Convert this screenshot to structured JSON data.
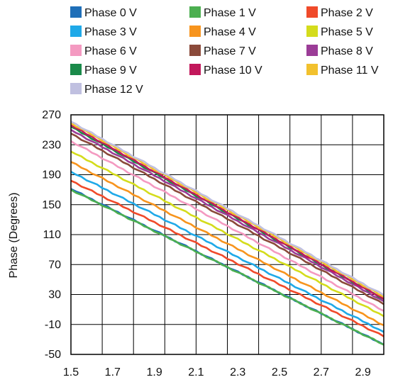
{
  "chart_data": {
    "type": "line",
    "title": "",
    "xlabel": "",
    "ylabel": "Phase (Degrees)",
    "xlim": [
      1.5,
      3.0
    ],
    "ylim": [
      -50,
      270
    ],
    "xticks": [
      "1.5",
      "1.7",
      "1.9",
      "2.1",
      "2.3",
      "2.5",
      "2.7",
      "2.9"
    ],
    "xtick_values": [
      1.5,
      1.7,
      1.9,
      2.1,
      2.3,
      2.5,
      2.7,
      2.9
    ],
    "yticks": [
      "270",
      "230",
      "190",
      "150",
      "110",
      "70",
      "30",
      "-10",
      "-50"
    ],
    "ytick_values": [
      270,
      230,
      190,
      150,
      110,
      70,
      30,
      -10,
      -50
    ],
    "grid": true,
    "legend_position": "top",
    "x": [
      1.5,
      3.0
    ],
    "series": [
      {
        "name": "Phase 0 V",
        "color": "#1f6fb8",
        "values": [
          171,
          -37
        ]
      },
      {
        "name": "Phase 1 V",
        "color": "#4caf50",
        "values": [
          170,
          -37
        ]
      },
      {
        "name": "Phase 2 V",
        "color": "#f04a2a",
        "values": [
          182,
          -26
        ]
      },
      {
        "name": "Phase 3 V",
        "color": "#1fa9e8",
        "values": [
          194,
          -20
        ]
      },
      {
        "name": "Phase 4 V",
        "color": "#f7941d",
        "values": [
          207,
          -11
        ]
      },
      {
        "name": "Phase 5 V",
        "color": "#d4dc1c",
        "values": [
          221,
          1
        ]
      },
      {
        "name": "Phase 6 V",
        "color": "#f49ac1",
        "values": [
          235,
          8
        ]
      },
      {
        "name": "Phase 7 V",
        "color": "#8b4a3a",
        "values": [
          245,
          17
        ]
      },
      {
        "name": "Phase 8 V",
        "color": "#9b3c97",
        "values": [
          250,
          21
        ]
      },
      {
        "name": "Phase 9 V",
        "color": "#1a8a4a",
        "values": [
          254,
          24
        ]
      },
      {
        "name": "Phase 10 V",
        "color": "#c2185b",
        "values": [
          256,
          24
        ]
      },
      {
        "name": "Phase 11 V",
        "color": "#f2c12e",
        "values": [
          259,
          27
        ]
      },
      {
        "name": "Phase 12 V",
        "color": "#c0c0e0",
        "values": [
          261,
          29
        ]
      }
    ]
  }
}
